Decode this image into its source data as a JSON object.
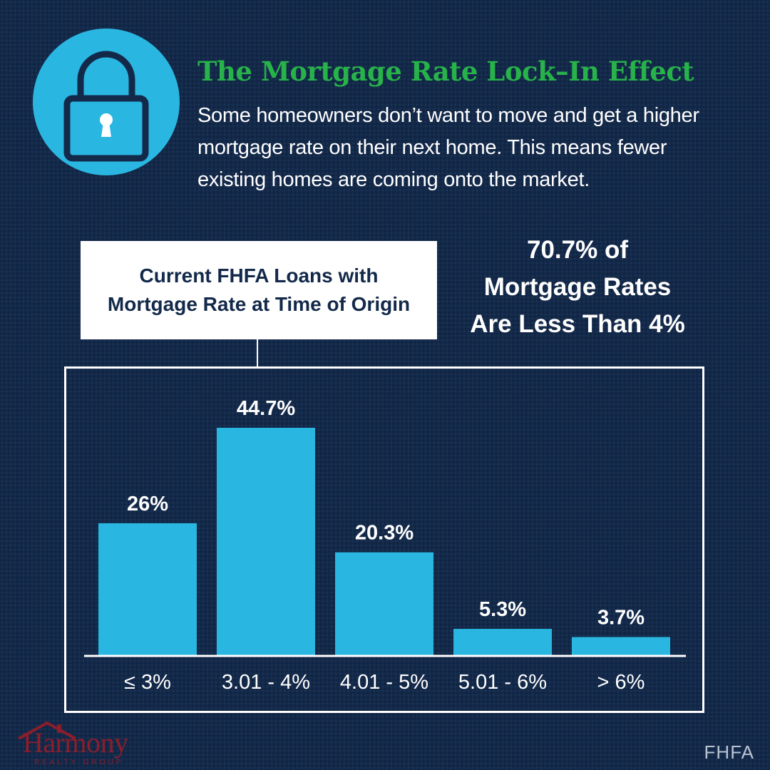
{
  "header": {
    "icon": "lock-icon",
    "title": "The Mortgage Rate Lock–In Effect",
    "subtitle": "Some homeowners don’t want to move and get a higher mortgage rate on their next home. This means fewer existing homes are coming onto the market."
  },
  "chart_label": {
    "line1": "Current FHFA Loans with",
    "line2": "Mortgage Rate at Time of Origin"
  },
  "callout": {
    "line1": "70.7% of",
    "line2": "Mortgage Rates",
    "line3": "Are Less Than 4%"
  },
  "chart_data": {
    "type": "bar",
    "title": "Current FHFA Loans with Mortgage Rate at Time of Origin",
    "categories": [
      "≤ 3%",
      "3.01 - 4%",
      "4.01 - 5%",
      "5.01 - 6%",
      "> 6%"
    ],
    "values": [
      26,
      44.7,
      20.3,
      5.3,
      3.7
    ],
    "value_labels": [
      "26%",
      "44.7%",
      "20.3%",
      "5.3%",
      "3.7%"
    ],
    "ylim": [
      0,
      50
    ],
    "grid": false,
    "bar_color": "#29b6e1"
  },
  "logo": {
    "name": "Harmony",
    "tagline": "REALTY GROUP"
  },
  "source": "FHFA",
  "colors": {
    "background": "#13294a",
    "accent": "#29b6e1",
    "title": "#27b24a",
    "logo": "#8b1e2b"
  }
}
